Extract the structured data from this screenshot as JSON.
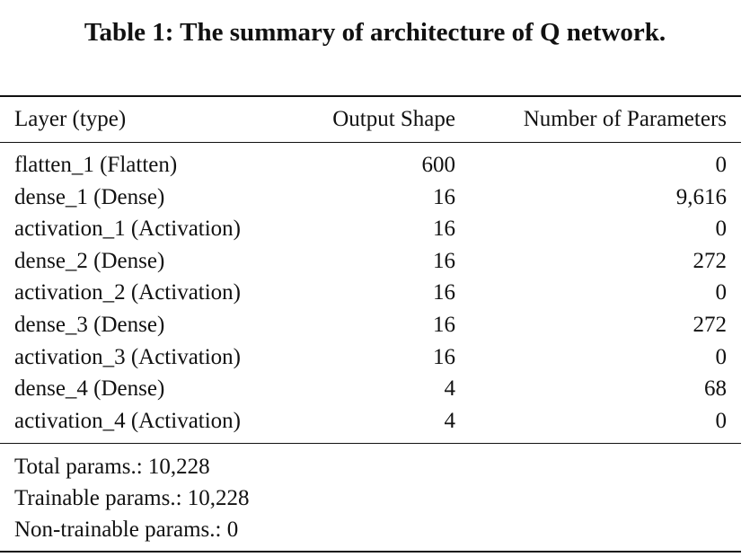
{
  "table": {
    "caption": "Table 1: The summary of architecture of Q network.",
    "headers": {
      "layer": "Layer (type)",
      "output_shape": "Output Shape",
      "num_params": "Number of Parameters"
    },
    "rows": [
      {
        "layer": "flatten_1 (Flatten)",
        "output_shape": "600",
        "num_params": "0"
      },
      {
        "layer": "dense_1 (Dense)",
        "output_shape": "16",
        "num_params": "9,616"
      },
      {
        "layer": "activation_1 (Activation)",
        "output_shape": "16",
        "num_params": "0"
      },
      {
        "layer": "dense_2 (Dense)",
        "output_shape": "16",
        "num_params": "272"
      },
      {
        "layer": "activation_2 (Activation)",
        "output_shape": "16",
        "num_params": "0"
      },
      {
        "layer": "dense_3 (Dense)",
        "output_shape": "16",
        "num_params": "272"
      },
      {
        "layer": "activation_3 (Activation)",
        "output_shape": "16",
        "num_params": "0"
      },
      {
        "layer": "dense_4 (Dense)",
        "output_shape": "4",
        "num_params": "68"
      },
      {
        "layer": "activation_4 (Activation)",
        "output_shape": "4",
        "num_params": "0"
      }
    ],
    "summary": {
      "total": "Total params.: 10,228",
      "trainable": "Trainable params.: 10,228",
      "non_trainable": "Non-trainable params.: 0"
    }
  }
}
